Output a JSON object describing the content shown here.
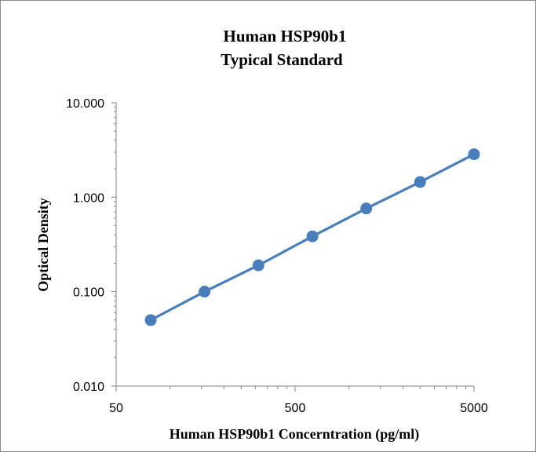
{
  "chart_data": {
    "type": "scatter",
    "title_lines": [
      "Human HSP90b1",
      "Typical Standard"
    ],
    "xlabel": "Human HSP90b1 Concerntration (pg/ml)",
    "ylabel": "Optical Density",
    "xscale": "log",
    "yscale": "log",
    "xlim": [
      50,
      5000
    ],
    "ylim": [
      0.01,
      10
    ],
    "x_tick_labels": [
      "50",
      "500",
      "5000"
    ],
    "y_tick_labels": [
      "0.010",
      "0.100",
      "1.000",
      "10.000"
    ],
    "grid": false,
    "legend": "none",
    "series": [
      {
        "x": [
          78,
          156,
          312,
          625,
          1250,
          2500,
          5000
        ],
        "y": [
          0.05,
          0.1,
          0.19,
          0.385,
          0.76,
          1.45,
          2.85
        ],
        "color": "#4a7ebb",
        "marker": "circle",
        "line": true
      }
    ]
  }
}
